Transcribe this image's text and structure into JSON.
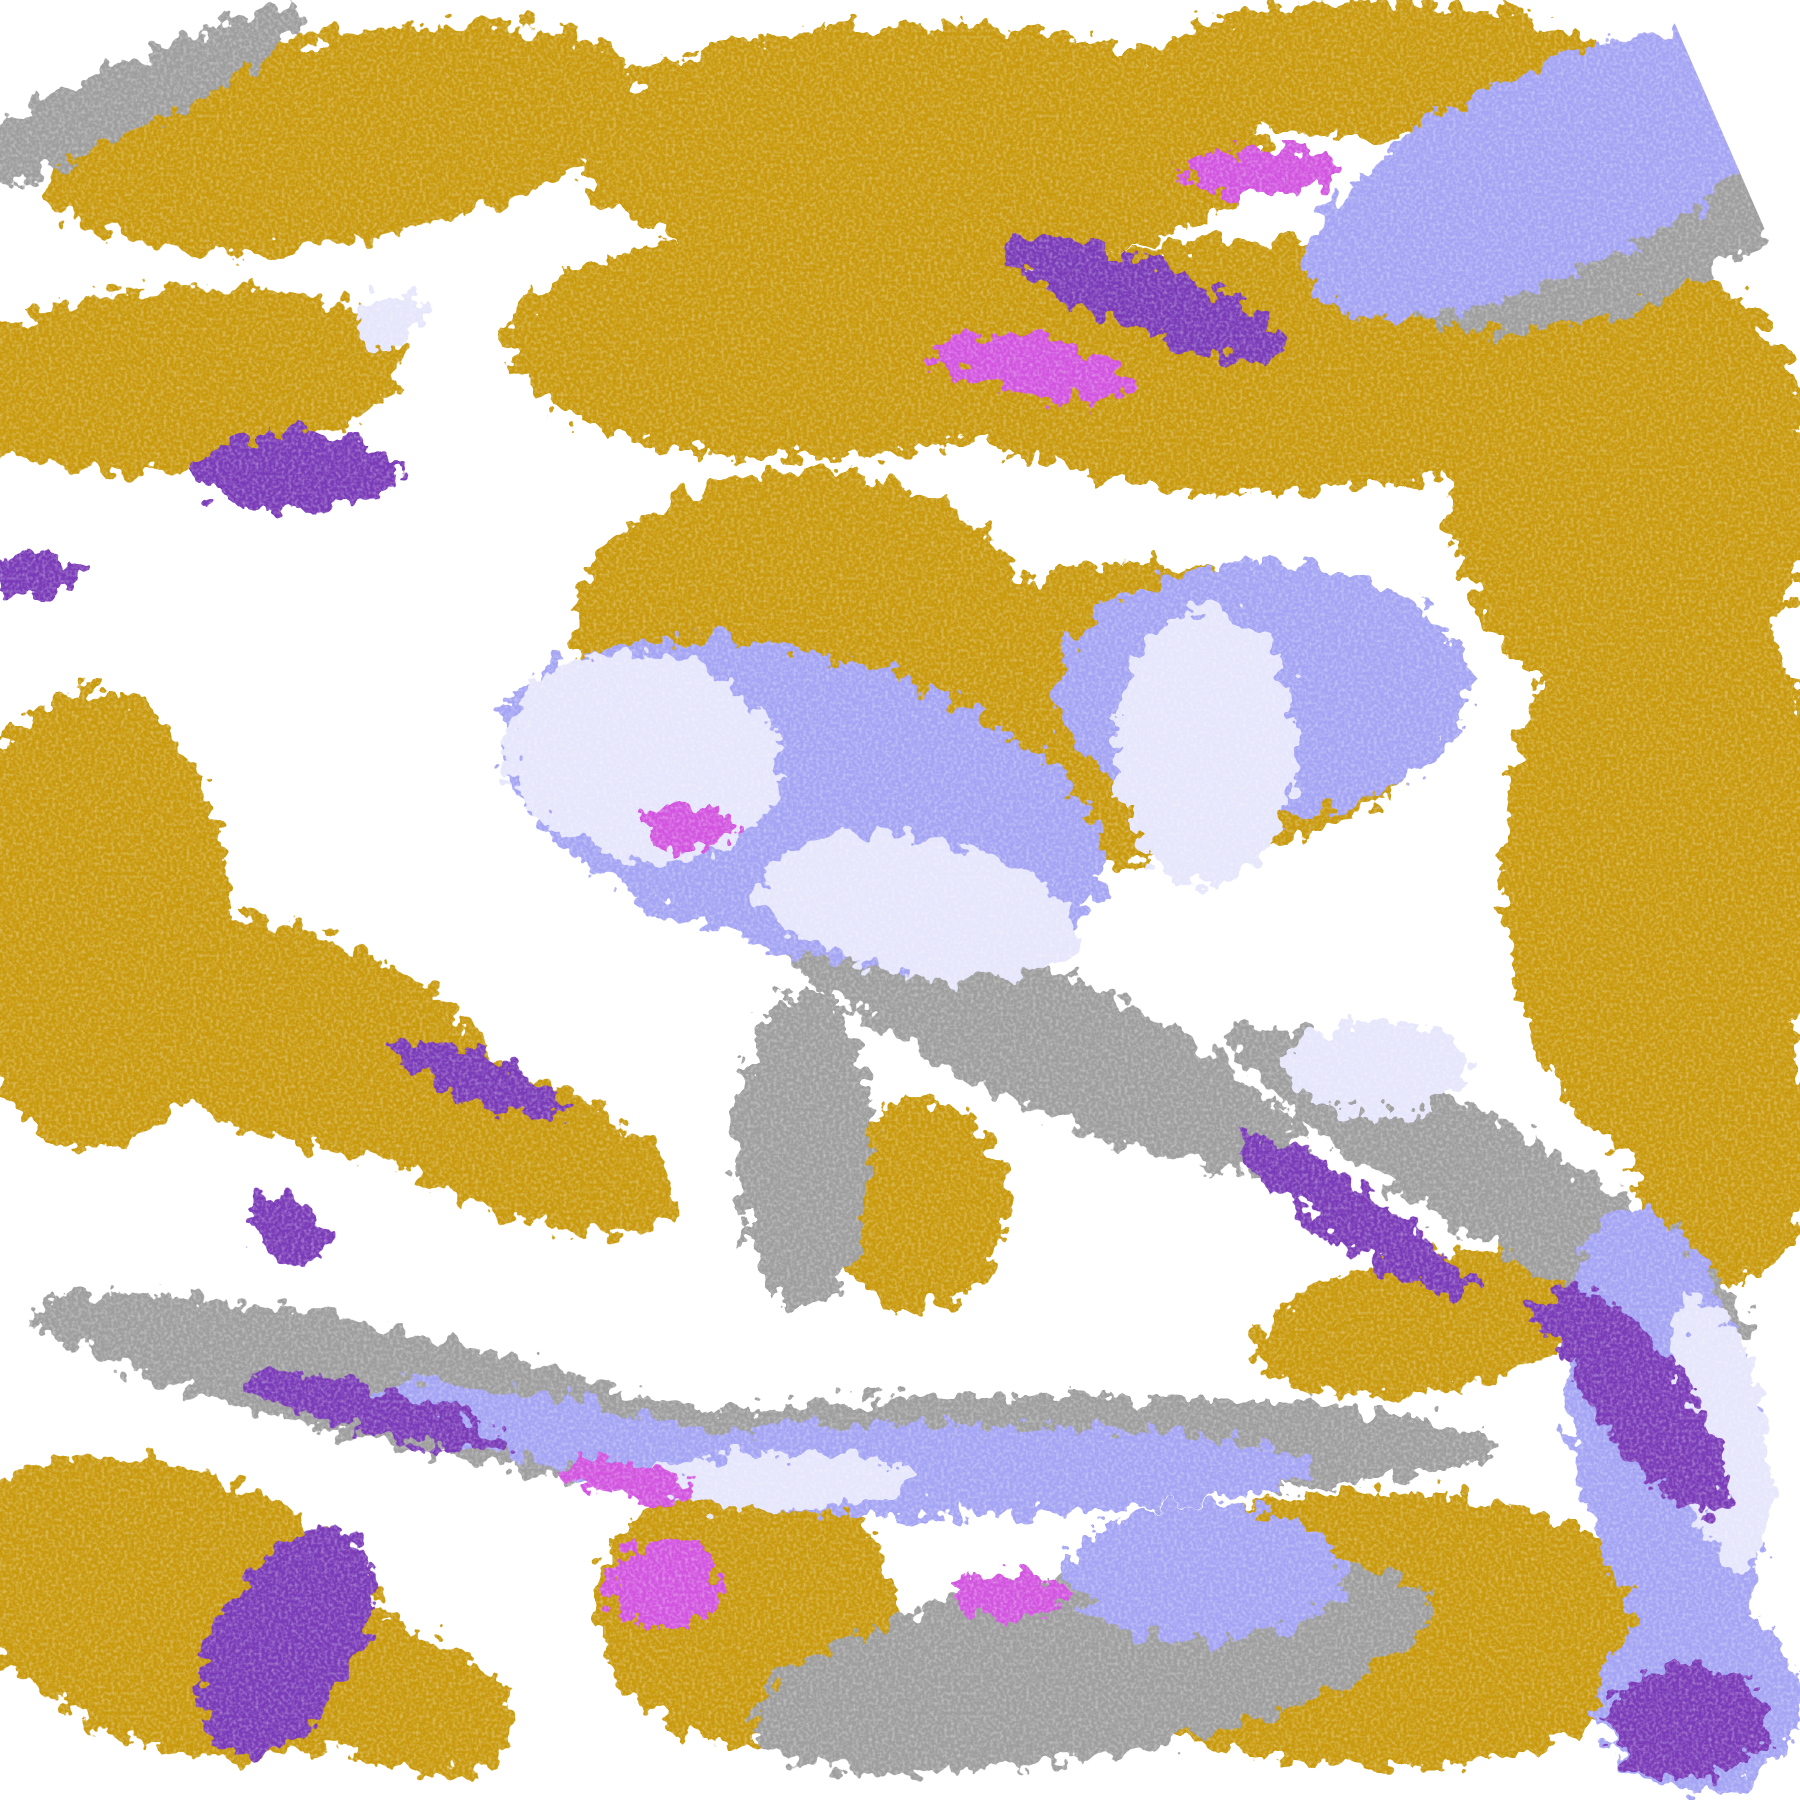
{
  "image": {
    "kind": "satellite cloud classification imagery",
    "palette": {
      "clear": "#ffffff",
      "low_cloud_gold": "#c99a10",
      "mid_cloud_gray": "#9e9e9e",
      "thin_cirrus_lavender": "#a4a4f4",
      "thick_cloud_pale": "#e6e6fc",
      "deep_convection_purple": "#7a3ab8",
      "mixed_magenta": "#d255e0",
      "no_data": "#ffffff"
    }
  }
}
